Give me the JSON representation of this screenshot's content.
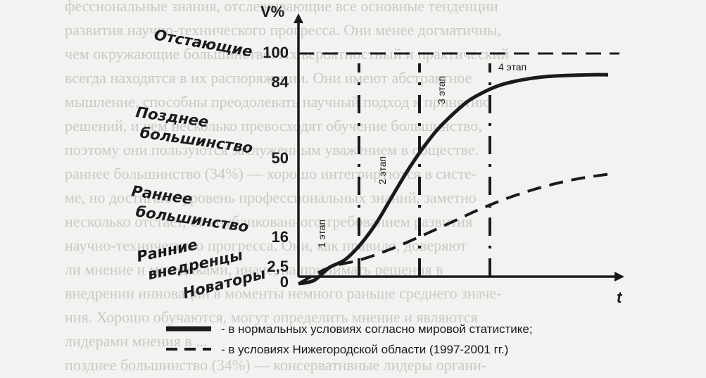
{
  "background_text": [
    "фессиональные знания, отслеживающие все основные тенденции",
    "развития научно-технического прогресса. Они менее догматичны,",
    "чем окружающие большинство. Их вероятностный и практический",
    "всегда находятся в их распоряжении. Они имеют абстрактное",
    "мышление, способны преодолевать научный подход к принятию",
    "решений, и чем несколько превосходят обучение большинство,",
    "поэтому они пользуются заслуженным уважением в обществе.",
    "раннее большинство (34%) — хорошо интегрируются в систе-",
    "ме, но достигают уровень профессиональных знаний, заметно",
    "несколько отстает, от опубликованного требованием развития",
    "научно-технического прогресса. Они, как правило, доверяют",
    "ли мнение и методиками, иначе, на принимать решения в",
    "внедрении инноваций в моменты немного раньше среднего значе-",
    "ния. Хорошо обучаются, могут определить мнение и являются",
    "лидерами мнения в ...",
    "позднее большинство (34%) — консервативные лидеры органи-"
  ],
  "chart_data": {
    "type": "line",
    "title": "",
    "xlabel": "t",
    "ylabel": "V%",
    "ylim": [
      0,
      100
    ],
    "y_ticks": [
      "0",
      "2,5",
      "16",
      "50",
      "84",
      "100"
    ],
    "y_tick_values": [
      0,
      2.5,
      16,
      50,
      84,
      100
    ],
    "categories_left": [
      {
        "label": "Отстающие",
        "y": 100
      },
      {
        "label": "Позднее большинство",
        "y": 84
      },
      {
        "label": "Раннее большинство",
        "y": 50
      },
      {
        "label": "Ранние внедренцы",
        "y": 16
      },
      {
        "label": "Новаторы",
        "y": 2.5
      }
    ],
    "stages": [
      {
        "label": "1 этап",
        "t": 2
      },
      {
        "label": "2 этап",
        "t": 4
      },
      {
        "label": "3 этап",
        "t": 6
      },
      {
        "label": "4 этап",
        "t": 8
      }
    ],
    "stage_boundaries_t": [
      0,
      2,
      4,
      6
    ],
    "series": [
      {
        "name": "- в нормальных условиях согласно мировой статистике;",
        "style": "solid",
        "x": [
          0,
          0.5,
          1,
          1.5,
          2,
          2.5,
          3,
          3.5,
          4,
          4.5,
          5,
          5.5,
          6,
          6.5,
          7,
          7.5,
          8,
          8.5,
          9,
          9.5,
          10
        ],
        "values": [
          0,
          0.5,
          2.5,
          6,
          13,
          22,
          33,
          44,
          54,
          63,
          70,
          76,
          80,
          83,
          85,
          86.5,
          87.5,
          88,
          88.3,
          88.5,
          88.5
        ]
      },
      {
        "name": "- в условиях Нижегородской области (1997-2001 гг.)",
        "style": "dashed",
        "x": [
          0,
          1,
          2,
          3,
          4,
          5,
          6,
          7,
          8,
          9,
          10
        ],
        "values": [
          0,
          2.5,
          6,
          11,
          17,
          23,
          29,
          34,
          38,
          41,
          43
        ]
      }
    ],
    "reference_line": {
      "y": 100,
      "style": "dashed"
    },
    "colors": {
      "line": "#1a1a1a",
      "background": "#f2f2f0"
    }
  }
}
